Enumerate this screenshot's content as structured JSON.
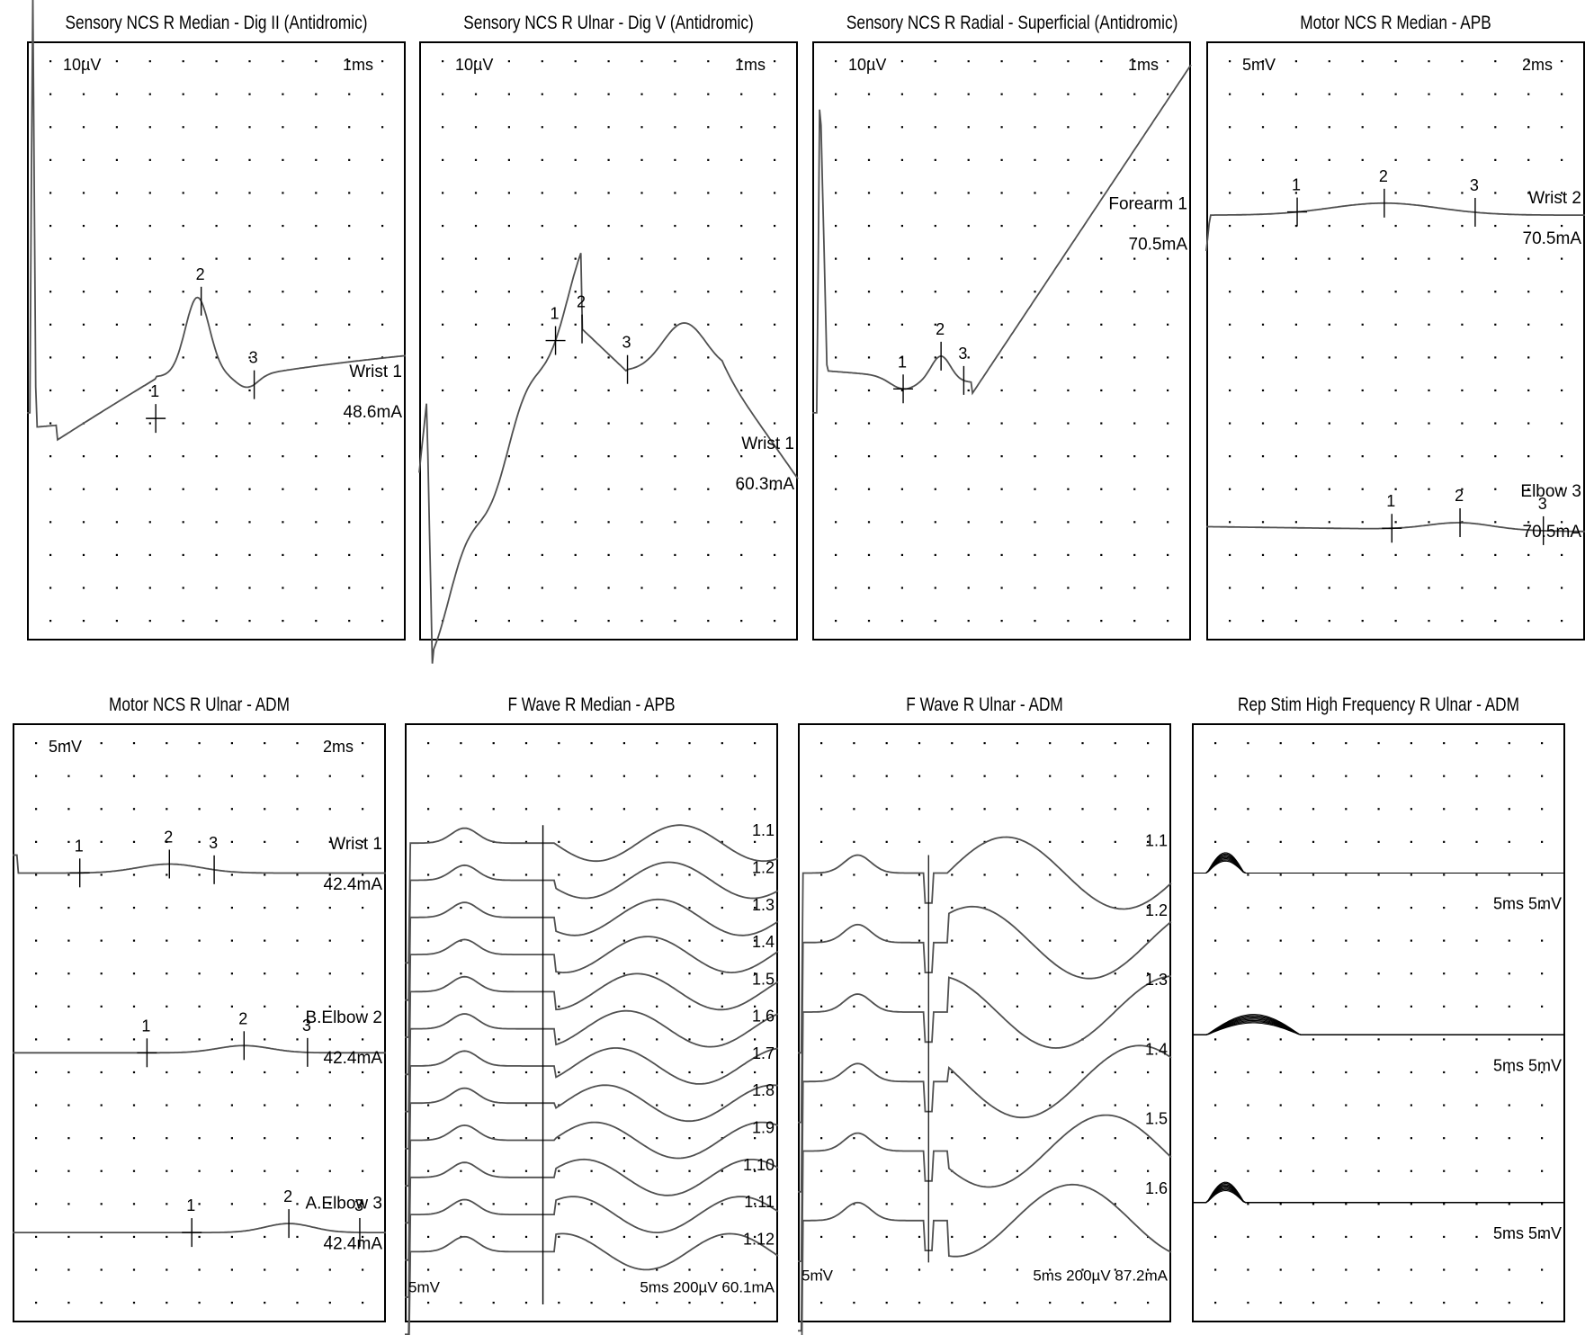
{
  "colors": {
    "trace": "#505050",
    "grid_dot": "#000000",
    "frame": "#000000",
    "text": "#000000"
  },
  "chart_data": [
    {
      "id": "p1",
      "type": "line",
      "title": "Sensory NCS R Median - Dig II (Antidromic)",
      "scale": {
        "amplitude": "10µV",
        "time": "1ms"
      },
      "traces": [
        {
          "label": "Wrist 1",
          "current": "48.6mA",
          "markers": [
            {
              "label": "1",
              "t": 0.34
            },
            {
              "label": "2",
              "t": 0.46
            },
            {
              "label": "3",
              "t": 0.6
            }
          ]
        }
      ]
    },
    {
      "id": "p2",
      "type": "line",
      "title": "Sensory NCS R Ulnar - Dig V (Antidromic)",
      "scale": {
        "amplitude": "10µV",
        "time": "1ms"
      },
      "traces": [
        {
          "label": "Wrist 1",
          "current": "60.3mA",
          "markers": [
            {
              "label": "1",
              "t": 0.36
            },
            {
              "label": "2",
              "t": 0.43
            },
            {
              "label": "3",
              "t": 0.55
            }
          ]
        }
      ]
    },
    {
      "id": "p3",
      "type": "line",
      "title": "Sensory NCS R Radial - Superficial (Antidromic)",
      "scale": {
        "amplitude": "10µV",
        "time": "1ms"
      },
      "traces": [
        {
          "label": "Forearm 1",
          "current": "70.5mA",
          "markers": [
            {
              "label": "1",
              "t": 0.24
            },
            {
              "label": "2",
              "t": 0.34
            },
            {
              "label": "3",
              "t": 0.4
            }
          ]
        }
      ]
    },
    {
      "id": "p4",
      "type": "line",
      "title": "Motor NCS R Median - APB",
      "scale": {
        "amplitude": "5mV",
        "time": "2ms"
      },
      "traces": [
        {
          "label": "Wrist 2",
          "current": "70.5mA",
          "markers": [
            {
              "label": "1",
              "t": 0.24
            },
            {
              "label": "2",
              "t": 0.47
            },
            {
              "label": "3",
              "t": 0.71
            }
          ]
        },
        {
          "label": "Elbow 3",
          "current": "70.5mA",
          "markers": [
            {
              "label": "1",
              "t": 0.49
            },
            {
              "label": "2",
              "t": 0.67
            },
            {
              "label": "3",
              "t": 0.89
            }
          ]
        }
      ]
    },
    {
      "id": "p5",
      "type": "line",
      "title": "Motor NCS R Ulnar - ADM",
      "scale": {
        "amplitude": "5mV",
        "time": "2ms"
      },
      "traces": [
        {
          "label": "Wrist 1",
          "current": "42.4mA",
          "markers": [
            {
              "label": "1",
              "t": 0.18
            },
            {
              "label": "2",
              "t": 0.42
            },
            {
              "label": "3",
              "t": 0.54
            }
          ]
        },
        {
          "label": "B.Elbow 2",
          "current": "42.4mA",
          "markers": [
            {
              "label": "1",
              "t": 0.36
            },
            {
              "label": "2",
              "t": 0.62
            },
            {
              "label": "3",
              "t": 0.79
            }
          ]
        },
        {
          "label": "A.Elbow 3",
          "current": "42.4mA",
          "markers": [
            {
              "label": "1",
              "t": 0.48
            },
            {
              "label": "2",
              "t": 0.74
            },
            {
              "label": "3",
              "t": 0.93
            }
          ]
        }
      ]
    },
    {
      "id": "p6",
      "type": "line",
      "title": "F  Wave R Median - APB",
      "scale_left": "5mV",
      "scale_right": "5ms 200µV 60.1mA",
      "trace_labels": [
        "1.1",
        "1.2",
        "1.3",
        "1.4",
        "1.5",
        "1.6",
        "1.7",
        "1.8",
        "1.9",
        "1.10",
        "1.11",
        "1.12"
      ]
    },
    {
      "id": "p7",
      "type": "line",
      "title": "F  Wave R Ulnar - ADM",
      "scale_left": "5mV",
      "scale_right": "5ms 200µV 87.2mA",
      "trace_labels": [
        "1.1",
        "1.2",
        "1.3",
        "1.4",
        "1.5",
        "1.6"
      ]
    },
    {
      "id": "p8",
      "type": "line",
      "title": "Rep Stim High Frequency R Ulnar - ADM",
      "trace_labels": [
        "5ms 5mV",
        "5ms 5mV",
        "5ms 5mV"
      ]
    }
  ]
}
